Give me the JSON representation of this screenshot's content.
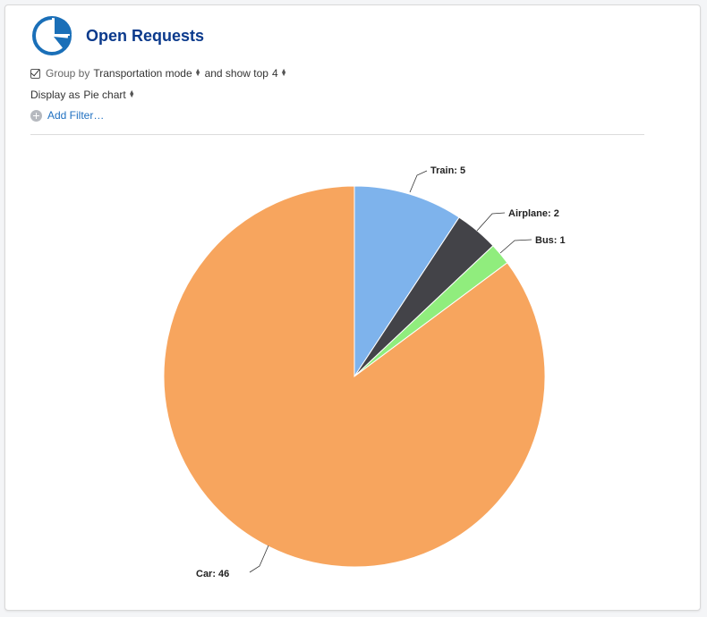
{
  "header": {
    "title": "Open Requests",
    "icon": "pie-chart-icon"
  },
  "controls": {
    "group_checked": true,
    "group_by_label": "Group by",
    "group_by_value": "Transportation mode",
    "show_top_label": "and show top",
    "show_top_value": "4",
    "display_as_label": "Display as",
    "display_as_value": "Pie chart",
    "add_filter_label": "Add Filter…"
  },
  "chart_data": {
    "type": "pie",
    "start_angle": "top, clockwise",
    "slices": [
      {
        "label": "Train",
        "value": 5,
        "text": "Train: 5",
        "color": "#7eb3ec"
      },
      {
        "label": "Airplane",
        "value": 2,
        "text": "Airplane: 2",
        "color": "#434348"
      },
      {
        "label": "Bus",
        "value": 1,
        "text": "Bus: 1",
        "color": "#90ed7d"
      },
      {
        "label": "Car",
        "value": 46,
        "text": "Car: 46",
        "color": "#f7a55e"
      }
    ]
  }
}
